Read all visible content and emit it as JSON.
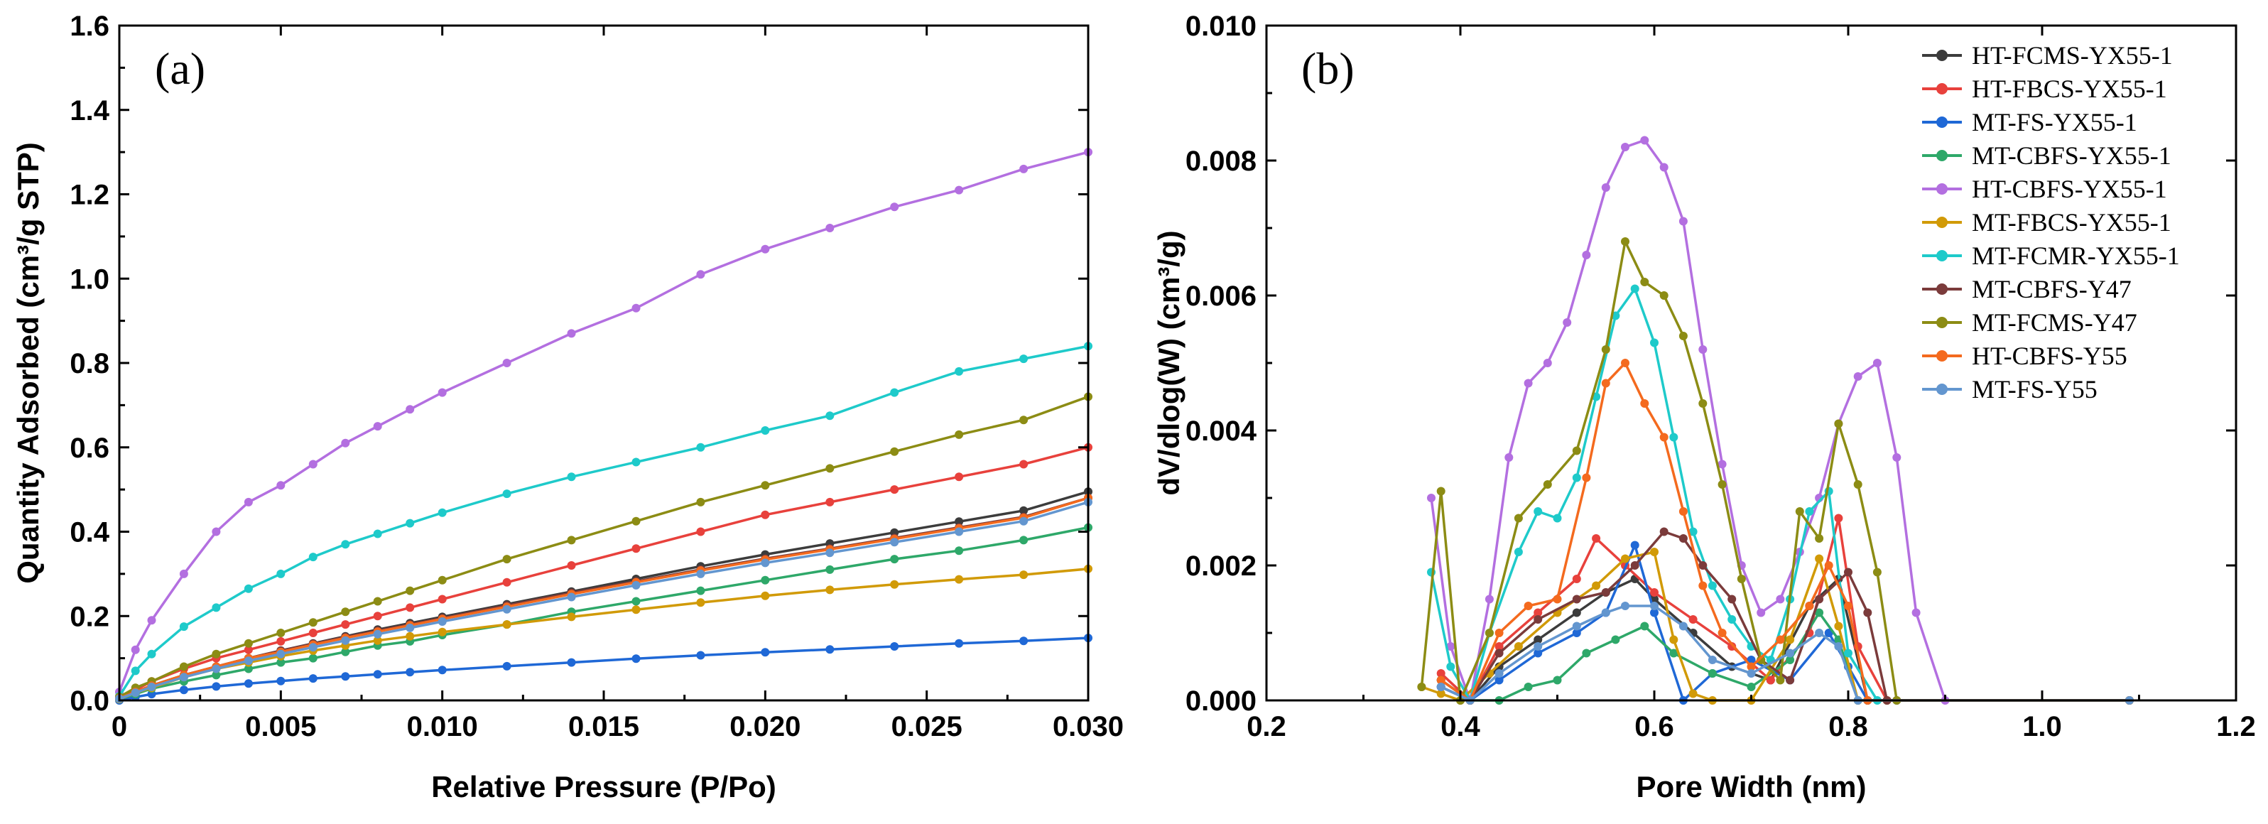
{
  "chart_data": [
    {
      "type": "line",
      "panel_label": "(a)",
      "xlabel": "Relative Pressure (P/Po)",
      "ylabel": "Quantity Adsorbed (cm³/g STP)",
      "xlim": [
        0,
        0.03
      ],
      "ylim": [
        0,
        1.6
      ],
      "xticks": [
        "0",
        "0.005",
        "0.010",
        "0.015",
        "0.020",
        "0.025",
        "0.030"
      ],
      "yticks": [
        "0.0",
        "0.2",
        "0.4",
        "0.6",
        "0.8",
        "1.0",
        "1.2",
        "1.4",
        "1.6"
      ],
      "x": [
        0,
        0.0005,
        0.001,
        0.002,
        0.003,
        0.004,
        0.005,
        0.006,
        0.007,
        0.008,
        0.009,
        0.01,
        0.012,
        0.014,
        0.016,
        0.018,
        0.02,
        0.022,
        0.024,
        0.026,
        0.028,
        0.03
      ],
      "series": [
        {
          "name": "HT-FCMS-YX55-1",
          "color": "#3c3c3c",
          "values": [
            0.005,
            0.02,
            0.035,
            0.06,
            0.08,
            0.1,
            0.118,
            0.135,
            0.152,
            0.168,
            0.183,
            0.198,
            0.228,
            0.258,
            0.288,
            0.318,
            0.346,
            0.372,
            0.398,
            0.424,
            0.45,
            0.495
          ]
        },
        {
          "name": "HT-FBCS-YX55-1",
          "color": "#e8413c",
          "values": [
            0.005,
            0.025,
            0.045,
            0.075,
            0.1,
            0.12,
            0.14,
            0.16,
            0.18,
            0.2,
            0.22,
            0.24,
            0.28,
            0.32,
            0.36,
            0.4,
            0.44,
            0.47,
            0.5,
            0.53,
            0.56,
            0.6
          ]
        },
        {
          "name": "MT-FS-YX55-1",
          "color": "#1f68d6",
          "values": [
            0.0,
            0.008,
            0.015,
            0.025,
            0.033,
            0.04,
            0.046,
            0.052,
            0.057,
            0.062,
            0.067,
            0.072,
            0.081,
            0.09,
            0.099,
            0.107,
            0.114,
            0.121,
            0.128,
            0.135,
            0.141,
            0.148
          ]
        },
        {
          "name": "MT-CBFS-YX55-1",
          "color": "#2ea869",
          "values": [
            0.003,
            0.015,
            0.028,
            0.045,
            0.06,
            0.075,
            0.09,
            0.1,
            0.115,
            0.13,
            0.14,
            0.155,
            0.18,
            0.21,
            0.235,
            0.26,
            0.285,
            0.31,
            0.335,
            0.355,
            0.38,
            0.41
          ]
        },
        {
          "name": "HT-CBFS-YX55-1",
          "color": "#b36fe0",
          "values": [
            0.02,
            0.12,
            0.19,
            0.3,
            0.4,
            0.47,
            0.51,
            0.56,
            0.61,
            0.65,
            0.69,
            0.73,
            0.8,
            0.87,
            0.93,
            1.01,
            1.07,
            1.12,
            1.17,
            1.21,
            1.26,
            1.3
          ]
        },
        {
          "name": "MT-FBCS-YX55-1",
          "color": "#d19a07",
          "values": [
            0.003,
            0.018,
            0.03,
            0.055,
            0.075,
            0.09,
            0.105,
            0.118,
            0.13,
            0.142,
            0.152,
            0.162,
            0.18,
            0.198,
            0.215,
            0.232,
            0.248,
            0.262,
            0.275,
            0.287,
            0.298,
            0.312
          ]
        },
        {
          "name": "MT-FCMR-YX55-1",
          "color": "#1ecaca",
          "values": [
            0.01,
            0.07,
            0.11,
            0.175,
            0.22,
            0.265,
            0.3,
            0.34,
            0.37,
            0.395,
            0.42,
            0.445,
            0.49,
            0.53,
            0.565,
            0.6,
            0.64,
            0.675,
            0.73,
            0.78,
            0.81,
            0.84
          ]
        },
        {
          "name": "MT-CBFS-Y47",
          "color": "#7b3b3b",
          "values": [
            0.005,
            0.02,
            0.035,
            0.06,
            0.08,
            0.1,
            0.118,
            0.134,
            0.15,
            0.165,
            0.18,
            0.195,
            0.225,
            0.255,
            0.282,
            0.31,
            0.336,
            0.36,
            0.385,
            0.41,
            0.435,
            0.48
          ]
        },
        {
          "name": "MT-FCMS-Y47",
          "color": "#8c8c14",
          "values": [
            0.008,
            0.03,
            0.045,
            0.08,
            0.11,
            0.135,
            0.16,
            0.185,
            0.21,
            0.235,
            0.26,
            0.285,
            0.335,
            0.38,
            0.425,
            0.47,
            0.51,
            0.55,
            0.59,
            0.63,
            0.665,
            0.72
          ]
        },
        {
          "name": "HT-CBFS-Y55",
          "color": "#f46a1e",
          "values": [
            0.005,
            0.02,
            0.035,
            0.06,
            0.08,
            0.1,
            0.115,
            0.132,
            0.148,
            0.163,
            0.178,
            0.193,
            0.222,
            0.252,
            0.28,
            0.308,
            0.334,
            0.358,
            0.383,
            0.408,
            0.433,
            0.48
          ]
        },
        {
          "name": "MT-FS-Y55",
          "color": "#6396cf",
          "values": [
            0.004,
            0.018,
            0.032,
            0.055,
            0.075,
            0.094,
            0.11,
            0.126,
            0.142,
            0.157,
            0.172,
            0.187,
            0.216,
            0.245,
            0.273,
            0.3,
            0.326,
            0.35,
            0.375,
            0.4,
            0.425,
            0.47
          ]
        }
      ]
    },
    {
      "type": "line",
      "panel_label": "(b)",
      "xlabel": "Pore Width (nm)",
      "ylabel": "dV/dlog(W) (cm³/g)",
      "xlim": [
        0.2,
        1.2
      ],
      "ylim": [
        0,
        0.01
      ],
      "xticks": [
        "0.2",
        "0.4",
        "0.6",
        "0.8",
        "1.0",
        "1.2"
      ],
      "yticks": [
        "0.000",
        "0.002",
        "0.004",
        "0.006",
        "0.008",
        "0.010"
      ],
      "legend_position": "top-right",
      "series": [
        {
          "name": "HT-FCMS-YX55-1",
          "color": "#3c3c3c",
          "x": [
            0.38,
            0.41,
            0.44,
            0.48,
            0.52,
            0.55,
            0.58,
            0.6,
            0.64,
            0.68,
            0.72,
            0.76,
            0.79,
            0.82,
            0.85,
            1.09
          ],
          "y": [
            0.0002,
            0.0,
            0.0005,
            0.0009,
            0.0013,
            0.0016,
            0.0018,
            0.0015,
            0.001,
            0.0005,
            0.0003,
            0.0014,
            0.0018,
            0.0,
            0.0,
            0.0
          ]
        },
        {
          "name": "HT-FBCS-YX55-1",
          "color": "#e8413c",
          "x": [
            0.38,
            0.41,
            0.44,
            0.48,
            0.52,
            0.54,
            0.57,
            0.6,
            0.64,
            0.68,
            0.72,
            0.76,
            0.79,
            0.81,
            0.84,
            1.09
          ],
          "y": [
            0.0004,
            0.0,
            0.0008,
            0.0013,
            0.0018,
            0.0024,
            0.002,
            0.0016,
            0.0012,
            0.0008,
            0.0003,
            0.001,
            0.0027,
            0.0008,
            0.0,
            0.0
          ]
        },
        {
          "name": "MT-FS-YX55-1",
          "color": "#1f68d6",
          "x": [
            0.38,
            0.41,
            0.44,
            0.48,
            0.52,
            0.55,
            0.58,
            0.6,
            0.63,
            0.66,
            0.7,
            0.74,
            0.78,
            0.8,
            0.82,
            1.09
          ],
          "y": [
            0.0002,
            0.0,
            0.0003,
            0.0007,
            0.001,
            0.0013,
            0.0023,
            0.0013,
            0.0,
            0.0004,
            0.0006,
            0.0003,
            0.001,
            0.0005,
            0.0,
            0.0
          ]
        },
        {
          "name": "MT-CBFS-YX55-1",
          "color": "#2ea869",
          "x": [
            0.38,
            0.41,
            0.44,
            0.47,
            0.5,
            0.53,
            0.56,
            0.59,
            0.62,
            0.66,
            0.7,
            0.74,
            0.77,
            0.79,
            0.81,
            1.09
          ],
          "y": [
            0.0003,
            0.0,
            0.0,
            0.0002,
            0.0003,
            0.0007,
            0.0009,
            0.0011,
            0.0007,
            0.0004,
            0.0002,
            0.0006,
            0.0013,
            0.0009,
            0.0,
            0.0
          ]
        },
        {
          "name": "HT-CBFS-YX55-1",
          "color": "#b36fe0",
          "x": [
            0.37,
            0.39,
            0.41,
            0.43,
            0.45,
            0.47,
            0.49,
            0.51,
            0.53,
            0.55,
            0.57,
            0.59,
            0.61,
            0.63,
            0.65,
            0.67,
            0.69,
            0.71,
            0.73,
            0.75,
            0.77,
            0.79,
            0.81,
            0.83,
            0.85,
            0.87,
            0.9,
            1.09
          ],
          "y": [
            0.003,
            0.0008,
            0.0,
            0.0015,
            0.0036,
            0.0047,
            0.005,
            0.0056,
            0.0066,
            0.0076,
            0.0082,
            0.0083,
            0.0079,
            0.0071,
            0.0052,
            0.0035,
            0.002,
            0.0013,
            0.0015,
            0.0022,
            0.003,
            0.0041,
            0.0048,
            0.005,
            0.0036,
            0.0013,
            0.0,
            0.0
          ]
        },
        {
          "name": "MT-FBCS-YX55-1",
          "color": "#d19a07",
          "x": [
            0.36,
            0.38,
            0.4,
            0.43,
            0.46,
            0.5,
            0.54,
            0.57,
            0.6,
            0.62,
            0.64,
            0.66,
            0.7,
            0.74,
            0.77,
            0.79,
            0.81,
            0.84,
            1.09
          ],
          "y": [
            0.0002,
            0.0001,
            0.0,
            0.0004,
            0.0008,
            0.0013,
            0.0017,
            0.0021,
            0.0022,
            0.0009,
            0.0001,
            0.0,
            0.0,
            0.0009,
            0.0021,
            0.0011,
            0.0,
            0.0,
            0.0
          ]
        },
        {
          "name": "MT-FCMR-YX55-1",
          "color": "#1ecaca",
          "x": [
            0.37,
            0.39,
            0.41,
            0.43,
            0.46,
            0.48,
            0.5,
            0.52,
            0.54,
            0.56,
            0.58,
            0.6,
            0.62,
            0.64,
            0.66,
            0.68,
            0.7,
            0.72,
            0.74,
            0.76,
            0.78,
            0.8,
            0.83,
            1.09
          ],
          "y": [
            0.0019,
            0.0005,
            0.0,
            0.001,
            0.0022,
            0.0028,
            0.0027,
            0.0033,
            0.0045,
            0.0057,
            0.0061,
            0.0053,
            0.0039,
            0.0025,
            0.0017,
            0.0012,
            0.0008,
            0.0006,
            0.0015,
            0.0028,
            0.0031,
            0.0007,
            0.0,
            0.0
          ]
        },
        {
          "name": "MT-CBFS-Y47",
          "color": "#7b3b3b",
          "x": [
            0.38,
            0.41,
            0.44,
            0.48,
            0.52,
            0.55,
            0.58,
            0.61,
            0.63,
            0.65,
            0.68,
            0.71,
            0.74,
            0.77,
            0.8,
            0.82,
            0.84,
            1.09
          ],
          "y": [
            0.0003,
            0.0,
            0.0007,
            0.0012,
            0.0015,
            0.0016,
            0.002,
            0.0025,
            0.0024,
            0.002,
            0.0015,
            0.0006,
            0.0003,
            0.0015,
            0.0019,
            0.0013,
            0.0,
            0.0
          ]
        },
        {
          "name": "MT-FCMS-Y47",
          "color": "#8c8c14",
          "x": [
            0.36,
            0.38,
            0.4,
            0.43,
            0.46,
            0.49,
            0.52,
            0.55,
            0.57,
            0.59,
            0.61,
            0.63,
            0.65,
            0.67,
            0.69,
            0.71,
            0.73,
            0.75,
            0.77,
            0.79,
            0.81,
            0.83,
            0.85,
            1.09
          ],
          "y": [
            0.0002,
            0.0031,
            0.0,
            0.001,
            0.0027,
            0.0032,
            0.0037,
            0.0052,
            0.0068,
            0.0062,
            0.006,
            0.0054,
            0.0044,
            0.0032,
            0.0018,
            0.0006,
            0.0003,
            0.0028,
            0.0024,
            0.0041,
            0.0032,
            0.0019,
            0.0,
            0.0
          ]
        },
        {
          "name": "HT-CBFS-Y55",
          "color": "#f46a1e",
          "x": [
            0.38,
            0.41,
            0.44,
            0.47,
            0.5,
            0.53,
            0.55,
            0.57,
            0.59,
            0.61,
            0.63,
            0.65,
            0.67,
            0.7,
            0.73,
            0.76,
            0.78,
            0.8,
            0.82,
            1.09
          ],
          "y": [
            0.0003,
            0.0,
            0.001,
            0.0014,
            0.0015,
            0.0033,
            0.0047,
            0.005,
            0.0044,
            0.0039,
            0.0028,
            0.0017,
            0.001,
            0.0005,
            0.0009,
            0.0014,
            0.002,
            0.0014,
            0.0,
            0.0
          ]
        },
        {
          "name": "MT-FS-Y55",
          "color": "#6396cf",
          "x": [
            0.38,
            0.41,
            0.44,
            0.48,
            0.52,
            0.55,
            0.57,
            0.6,
            0.63,
            0.66,
            0.7,
            0.74,
            0.77,
            0.79,
            0.81,
            1.09
          ],
          "y": [
            0.0002,
            0.0,
            0.0004,
            0.0008,
            0.0011,
            0.0013,
            0.0014,
            0.0014,
            0.0011,
            0.0006,
            0.0004,
            0.0007,
            0.001,
            0.0008,
            0.0,
            0.0
          ]
        }
      ]
    }
  ]
}
